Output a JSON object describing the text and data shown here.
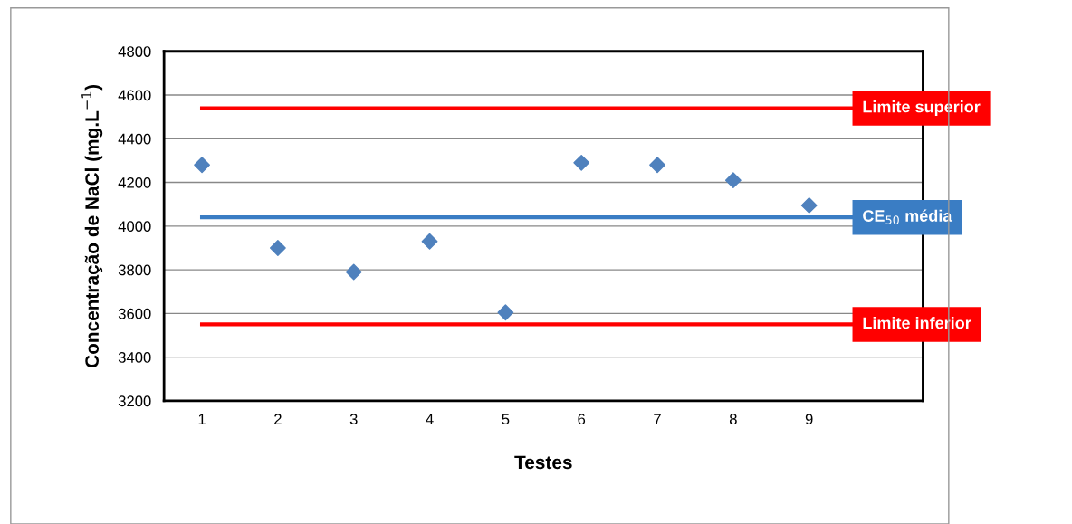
{
  "chart_data": {
    "type": "scatter",
    "xlabel": "Testes",
    "ylabel": "Concentração de NaCl (mg.L$^{−1}$)",
    "categories": [
      "1",
      "2",
      "3",
      "4",
      "5",
      "6",
      "7",
      "8",
      "9",
      null
    ],
    "series": [
      {
        "color": "#4f81bd",
        "values": [
          4280,
          3900,
          3790,
          3930,
          3605,
          4290,
          4280,
          4210,
          4095,
          null
        ]
      }
    ],
    "marker": "diamond",
    "ylim": [
      3200,
      4800
    ],
    "yticks": [
      3200,
      3400,
      3600,
      3800,
      4000,
      4200,
      4400,
      4600,
      4800
    ],
    "grid": "y",
    "legend": false,
    "ref_lines": [
      {
        "axis": "y",
        "value": 4540,
        "label": "Limite superior",
        "color": "#ff0000"
      },
      {
        "axis": "y",
        "value": 4040,
        "label": "CE$_{50}$ média",
        "color": "#3a7dc4"
      },
      {
        "axis": "y",
        "value": 3550,
        "label": "Limite inferior",
        "color": "#ff0000"
      }
    ]
  }
}
